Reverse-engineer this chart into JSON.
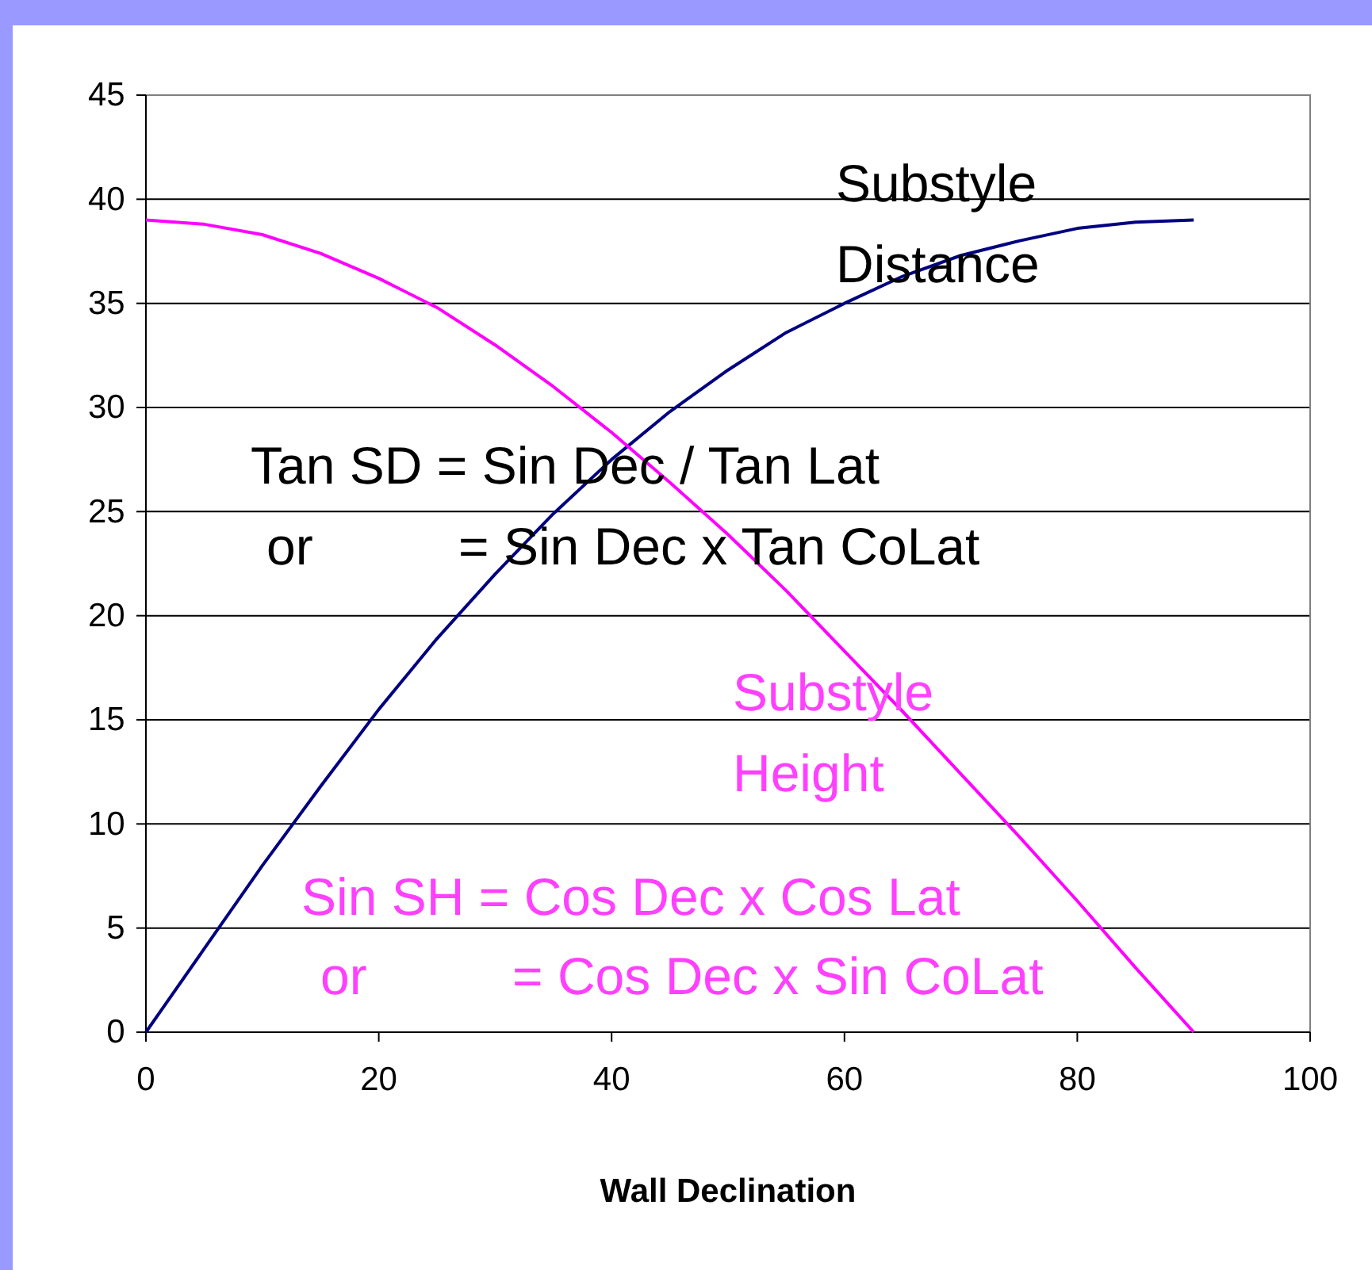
{
  "chart_data": {
    "type": "line",
    "xlabel": "Wall Declination",
    "x": [
      0,
      5,
      10,
      15,
      20,
      25,
      30,
      35,
      40,
      45,
      50,
      55,
      60,
      65,
      70,
      75,
      80,
      85,
      90
    ],
    "series": [
      {
        "color": "#000080",
        "values": [
          0,
          4.0,
          8.0,
          11.8,
          15.5,
          18.9,
          22.0,
          24.9,
          27.5,
          29.8,
          31.8,
          33.6,
          35.0,
          36.3,
          37.3,
          38.0,
          38.6,
          38.9,
          39.0
        ]
      },
      {
        "color": "#ff00ff",
        "values": [
          39.0,
          38.8,
          38.3,
          37.4,
          36.2,
          34.8,
          33.0,
          31.0,
          28.8,
          26.4,
          23.9,
          21.2,
          18.3,
          15.4,
          12.4,
          9.4,
          6.3,
          3.1,
          0
        ]
      }
    ],
    "xlim": [
      0,
      100
    ],
    "xticks": [
      0,
      20,
      40,
      60,
      80,
      100
    ],
    "ylim": [
      0,
      45
    ],
    "yticks": [
      0,
      5,
      10,
      15,
      20,
      25,
      30,
      35,
      40,
      45
    ],
    "grid": "y",
    "marker": "none",
    "line_style": "solid",
    "annotations": [
      "Substyle",
      "Distance",
      "Tan SD = Sin Dec / Tan Lat",
      "or          = Sin Dec x Tan CoLat",
      "Substyle",
      "Height",
      "Sin SH = Cos Dec x Cos Lat",
      "or          = Cos Dec x Sin CoLat"
    ]
  }
}
